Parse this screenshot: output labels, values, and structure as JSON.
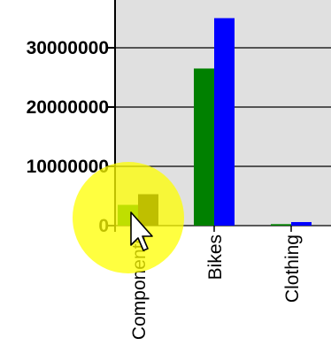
{
  "chart_data": {
    "type": "bar",
    "categories": [
      "Components",
      "Bikes",
      "Clothing"
    ],
    "series": [
      {
        "values": [
          3500000,
          26500000,
          250000
        ],
        "color": "#008000"
      },
      {
        "values": [
          5300000,
          35000000,
          600000
        ],
        "color": "#0000ff"
      }
    ],
    "highlighted_bar": {
      "category_index": 0,
      "series_index": 1,
      "color": "#000000"
    },
    "y_ticks": [
      0,
      10000000,
      20000000,
      30000000
    ],
    "ylim": [
      0,
      35000000
    ],
    "plot_background": "#e0e0e0",
    "grid": true,
    "title": "",
    "xlabel": "",
    "ylabel": ""
  },
  "cursor": {
    "icon": "arrow-pointer-icon",
    "highlight_color": "#ffff00"
  }
}
